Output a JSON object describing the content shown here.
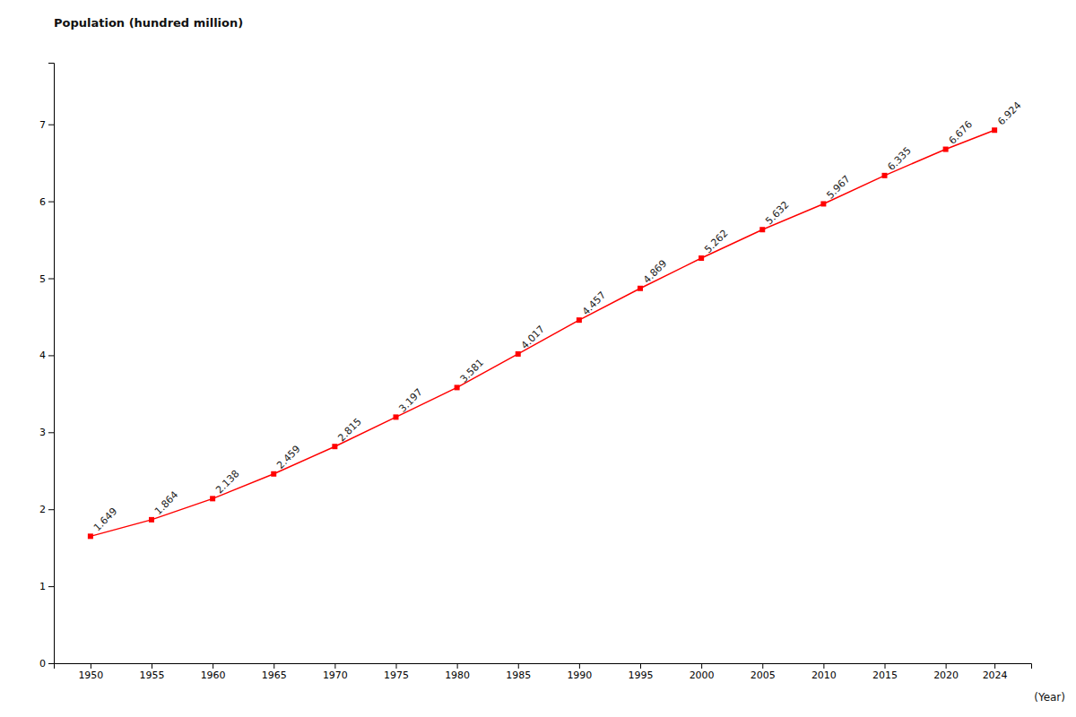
{
  "chart_data": {
    "type": "line",
    "ylabel": "Population (hundred million)",
    "xlabel": "(Year)",
    "x": [
      1950,
      1955,
      1960,
      1965,
      1970,
      1975,
      1980,
      1985,
      1990,
      1995,
      2000,
      2005,
      2010,
      2015,
      2020,
      2024
    ],
    "values": [
      1.649,
      1.864,
      2.138,
      2.459,
      2.815,
      3.197,
      3.581,
      4.017,
      4.457,
      4.869,
      5.262,
      5.632,
      5.967,
      6.335,
      6.676,
      6.924
    ],
    "color": "#ff0000",
    "marker": "square",
    "data_labels": true,
    "grid": false,
    "xlim": [
      1947,
      2027
    ],
    "ylim": [
      0,
      7.8
    ],
    "xticks": [
      1950,
      1955,
      1960,
      1965,
      1970,
      1975,
      1980,
      1985,
      1990,
      1995,
      2000,
      2005,
      2010,
      2015,
      2020,
      2024
    ],
    "yticks": [
      0,
      1,
      2,
      3,
      4,
      5,
      6,
      7
    ]
  }
}
